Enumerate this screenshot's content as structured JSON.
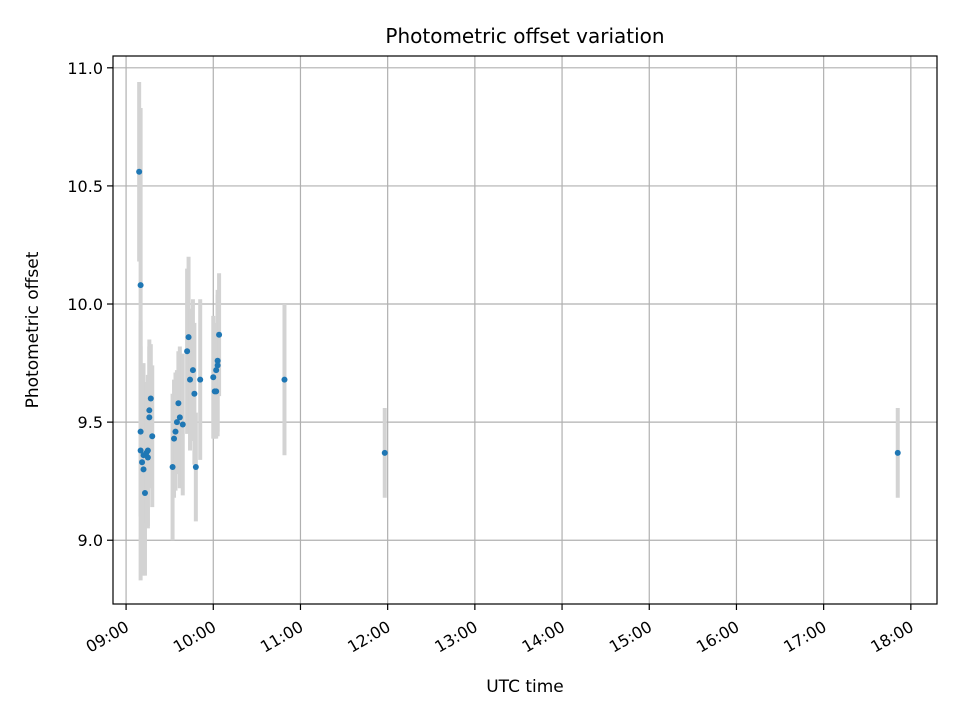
{
  "chart_data": {
    "type": "scatter",
    "title": "Photometric offset variation",
    "xlabel": "UTC time",
    "ylabel": "Photometric offset",
    "x_unit": "UTC hours",
    "xlim": [
      "08:51",
      "18:18"
    ],
    "ylim": [
      8.73,
      11.05
    ],
    "x_ticks": [
      "09:00",
      "10:00",
      "11:00",
      "12:00",
      "13:00",
      "14:00",
      "15:00",
      "16:00",
      "17:00",
      "18:00"
    ],
    "y_ticks": [
      "9.0",
      "9.5",
      "10.0",
      "10.5",
      "11.0"
    ],
    "grid": true,
    "legend": "none",
    "colors": {
      "points": "#1f77b4",
      "error_bars": "#d3d3d3",
      "grid": "#b0b0b0"
    },
    "points": [
      {
        "t": "09:09",
        "y": 10.56,
        "err": 0.38
      },
      {
        "t": "09:10",
        "y": 10.08,
        "err": 0.75
      },
      {
        "t": "09:10",
        "y": 9.46,
        "err": 0.36
      },
      {
        "t": "09:10",
        "y": 9.38,
        "err": 0.55
      },
      {
        "t": "09:11",
        "y": 9.33,
        "err": 0.4
      },
      {
        "t": "09:12",
        "y": 9.3,
        "err": 0.45
      },
      {
        "t": "09:12",
        "y": 9.36,
        "err": 0.35
      },
      {
        "t": "09:13",
        "y": 9.2,
        "err": 0.35
      },
      {
        "t": "09:14",
        "y": 9.37,
        "err": 0.3
      },
      {
        "t": "09:15",
        "y": 9.35,
        "err": 0.3
      },
      {
        "t": "09:15",
        "y": 9.38,
        "err": 0.32
      },
      {
        "t": "09:16",
        "y": 9.52,
        "err": 0.3
      },
      {
        "t": "09:16",
        "y": 9.55,
        "err": 0.3
      },
      {
        "t": "09:17",
        "y": 9.6,
        "err": 0.23
      },
      {
        "t": "09:18",
        "y": 9.44,
        "err": 0.3
      },
      {
        "t": "09:32",
        "y": 9.31,
        "err": 0.31
      },
      {
        "t": "09:33",
        "y": 9.43,
        "err": 0.25
      },
      {
        "t": "09:34",
        "y": 9.46,
        "err": 0.25
      },
      {
        "t": "09:35",
        "y": 9.5,
        "err": 0.22
      },
      {
        "t": "09:36",
        "y": 9.58,
        "err": 0.22
      },
      {
        "t": "09:37",
        "y": 9.52,
        "err": 0.3
      },
      {
        "t": "09:39",
        "y": 9.49,
        "err": 0.3
      },
      {
        "t": "09:42",
        "y": 9.8,
        "err": 0.35
      },
      {
        "t": "09:43",
        "y": 9.86,
        "err": 0.34
      },
      {
        "t": "09:44",
        "y": 9.68,
        "err": 0.3
      },
      {
        "t": "09:46",
        "y": 9.72,
        "err": 0.3
      },
      {
        "t": "09:47",
        "y": 9.62,
        "err": 0.3
      },
      {
        "t": "09:48",
        "y": 9.31,
        "err": 0.23
      },
      {
        "t": "09:51",
        "y": 9.68,
        "err": 0.34
      },
      {
        "t": "10:00",
        "y": 9.69,
        "err": 0.26
      },
      {
        "t": "10:01",
        "y": 9.63,
        "err": 0.2
      },
      {
        "t": "10:02",
        "y": 9.63,
        "err": 0.2
      },
      {
        "t": "10:02",
        "y": 9.72,
        "err": 0.2
      },
      {
        "t": "10:03",
        "y": 9.76,
        "err": 0.3
      },
      {
        "t": "10:03",
        "y": 9.74,
        "err": 0.3
      },
      {
        "t": "10:04",
        "y": 9.87,
        "err": 0.26
      },
      {
        "t": "10:49",
        "y": 9.68,
        "err": 0.32
      },
      {
        "t": "11:58",
        "y": 9.37,
        "err": 0.19
      },
      {
        "t": "17:51",
        "y": 9.37,
        "err": 0.19
      }
    ]
  }
}
